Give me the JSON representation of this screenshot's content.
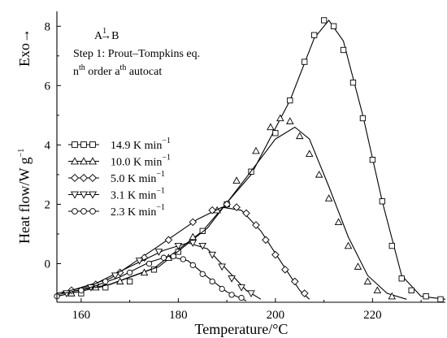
{
  "chart_data": {
    "type": "scatter",
    "xlabel": "Temperature/°C",
    "ylabel": "Heat flow/W g",
    "ylabel_sup": "−1",
    "exo_label": "Exo→",
    "xlim": [
      155,
      235
    ],
    "ylim": [
      -1.3,
      8.5
    ],
    "x_ticks": [
      160,
      180,
      200,
      220
    ],
    "y_ticks": [
      0,
      2,
      4,
      6,
      8
    ],
    "grid": false,
    "legend_position": "center-left",
    "annotations": {
      "reaction_prefix": "A",
      "reaction_arrow": "→",
      "reaction_arrow_sup": "1",
      "reaction_suffix": "B",
      "step": "Step 1: Prout–Tompkins eq.",
      "model_n": "n",
      "model_n_sup": "th",
      "model_mid": " order  a",
      "model_a_sup": "th",
      "model_tail": " autocat"
    },
    "series": [
      {
        "name": "14.9 K min",
        "name_sup": "−1",
        "marker": "square",
        "points": [
          [
            160,
            -1.0
          ],
          [
            165,
            -0.8
          ],
          [
            170,
            -0.6
          ],
          [
            175,
            -0.2
          ],
          [
            180,
            0.4
          ],
          [
            185,
            1.1
          ],
          [
            190,
            2.0
          ],
          [
            195,
            3.1
          ],
          [
            200,
            4.4
          ],
          [
            203,
            5.5
          ],
          [
            206,
            6.8
          ],
          [
            208,
            7.7
          ],
          [
            210,
            8.2
          ],
          [
            212,
            8.0
          ],
          [
            214,
            7.2
          ],
          [
            216,
            6.1
          ],
          [
            218,
            4.9
          ],
          [
            220,
            3.5
          ],
          [
            222,
            2.1
          ],
          [
            224,
            0.6
          ],
          [
            226,
            -0.5
          ],
          [
            228,
            -0.9
          ],
          [
            231,
            -1.1
          ],
          [
            234,
            -1.2
          ]
        ],
        "fit": [
          [
            155,
            -1.1
          ],
          [
            165,
            -0.75
          ],
          [
            175,
            -0.15
          ],
          [
            185,
            1.1
          ],
          [
            195,
            3.0
          ],
          [
            203,
            5.5
          ],
          [
            208,
            7.6
          ],
          [
            211,
            8.2
          ],
          [
            214,
            7.5
          ],
          [
            218,
            5.0
          ],
          [
            222,
            2.1
          ],
          [
            226,
            -0.4
          ],
          [
            230,
            -1.1
          ],
          [
            235,
            -1.2
          ]
        ]
      },
      {
        "name": "10.0 K min",
        "name_sup": "−1",
        "marker": "triangle-up",
        "points": [
          [
            158,
            -1.0
          ],
          [
            163,
            -0.8
          ],
          [
            168,
            -0.6
          ],
          [
            173,
            -0.3
          ],
          [
            178,
            0.2
          ],
          [
            183,
            0.9
          ],
          [
            188,
            1.8
          ],
          [
            192,
            2.8
          ],
          [
            196,
            3.8
          ],
          [
            199,
            4.6
          ],
          [
            201,
            4.9
          ],
          [
            203,
            4.8
          ],
          [
            205,
            4.3
          ],
          [
            207,
            3.7
          ],
          [
            209,
            3.0
          ],
          [
            211,
            2.2
          ],
          [
            213,
            1.4
          ],
          [
            215,
            0.6
          ],
          [
            217,
            -0.1
          ],
          [
            219,
            -0.6
          ],
          [
            221,
            -0.9
          ],
          [
            224,
            -1.1
          ]
        ],
        "fit": [
          [
            156,
            -1.0
          ],
          [
            166,
            -0.7
          ],
          [
            176,
            -0.1
          ],
          [
            186,
            1.2
          ],
          [
            194,
            2.9
          ],
          [
            200,
            4.2
          ],
          [
            204,
            4.6
          ],
          [
            207,
            4.2
          ],
          [
            211,
            2.6
          ],
          [
            215,
            0.9
          ],
          [
            219,
            -0.4
          ],
          [
            223,
            -1.0
          ],
          [
            227,
            -1.2
          ]
        ]
      },
      {
        "name": "5.0 K min",
        "name_sup": "−1",
        "marker": "diamond",
        "points": [
          [
            158,
            -0.9
          ],
          [
            163,
            -0.7
          ],
          [
            168,
            -0.3
          ],
          [
            173,
            0.2
          ],
          [
            178,
            0.8
          ],
          [
            183,
            1.4
          ],
          [
            187,
            1.8
          ],
          [
            190,
            2.0
          ],
          [
            192,
            1.9
          ],
          [
            194,
            1.7
          ],
          [
            196,
            1.3
          ],
          [
            198,
            0.8
          ],
          [
            200,
            0.3
          ],
          [
            202,
            -0.2
          ],
          [
            204,
            -0.6
          ],
          [
            206,
            -1.0
          ]
        ],
        "fit": [
          [
            156,
            -1.0
          ],
          [
            166,
            -0.5
          ],
          [
            176,
            0.6
          ],
          [
            184,
            1.5
          ],
          [
            189,
            1.9
          ],
          [
            193,
            1.8
          ],
          [
            197,
            1.1
          ],
          [
            201,
            0.1
          ],
          [
            205,
            -0.9
          ],
          [
            207,
            -1.2
          ]
        ]
      },
      {
        "name": "3.1 K min",
        "name_sup": "−1",
        "marker": "triangle-down",
        "points": [
          [
            157,
            -1.0
          ],
          [
            162,
            -0.8
          ],
          [
            167,
            -0.4
          ],
          [
            172,
            0.1
          ],
          [
            176,
            0.4
          ],
          [
            180,
            0.6
          ],
          [
            183,
            0.7
          ],
          [
            185,
            0.6
          ],
          [
            187,
            0.3
          ],
          [
            189,
            -0.1
          ],
          [
            191,
            -0.5
          ],
          [
            193,
            -0.8
          ],
          [
            195,
            -1.0
          ]
        ],
        "fit": [
          [
            155,
            -1.0
          ],
          [
            162,
            -0.75
          ],
          [
            170,
            -0.1
          ],
          [
            177,
            0.45
          ],
          [
            182,
            0.7
          ],
          [
            186,
            0.5
          ],
          [
            190,
            -0.2
          ],
          [
            194,
            -0.9
          ],
          [
            197,
            -1.2
          ]
        ]
      },
      {
        "name": "2.3 K min",
        "name_sup": "−1",
        "marker": "circle",
        "points": [
          [
            155,
            -1.1
          ],
          [
            160,
            -0.9
          ],
          [
            165,
            -0.6
          ],
          [
            170,
            -0.3
          ],
          [
            174,
            0.0
          ],
          [
            177,
            0.2
          ],
          [
            179,
            0.25
          ],
          [
            181,
            0.15
          ],
          [
            183,
            -0.05
          ],
          [
            185,
            -0.35
          ],
          [
            187,
            -0.6
          ],
          [
            189,
            -0.85
          ],
          [
            191,
            -1.05
          ],
          [
            193,
            -1.15
          ]
        ],
        "fit": [
          [
            155,
            -1.05
          ],
          [
            162,
            -0.8
          ],
          [
            168,
            -0.45
          ],
          [
            174,
            0.05
          ],
          [
            178,
            0.25
          ],
          [
            182,
            0.1
          ],
          [
            186,
            -0.45
          ],
          [
            190,
            -0.95
          ],
          [
            194,
            -1.25
          ]
        ]
      }
    ]
  }
}
